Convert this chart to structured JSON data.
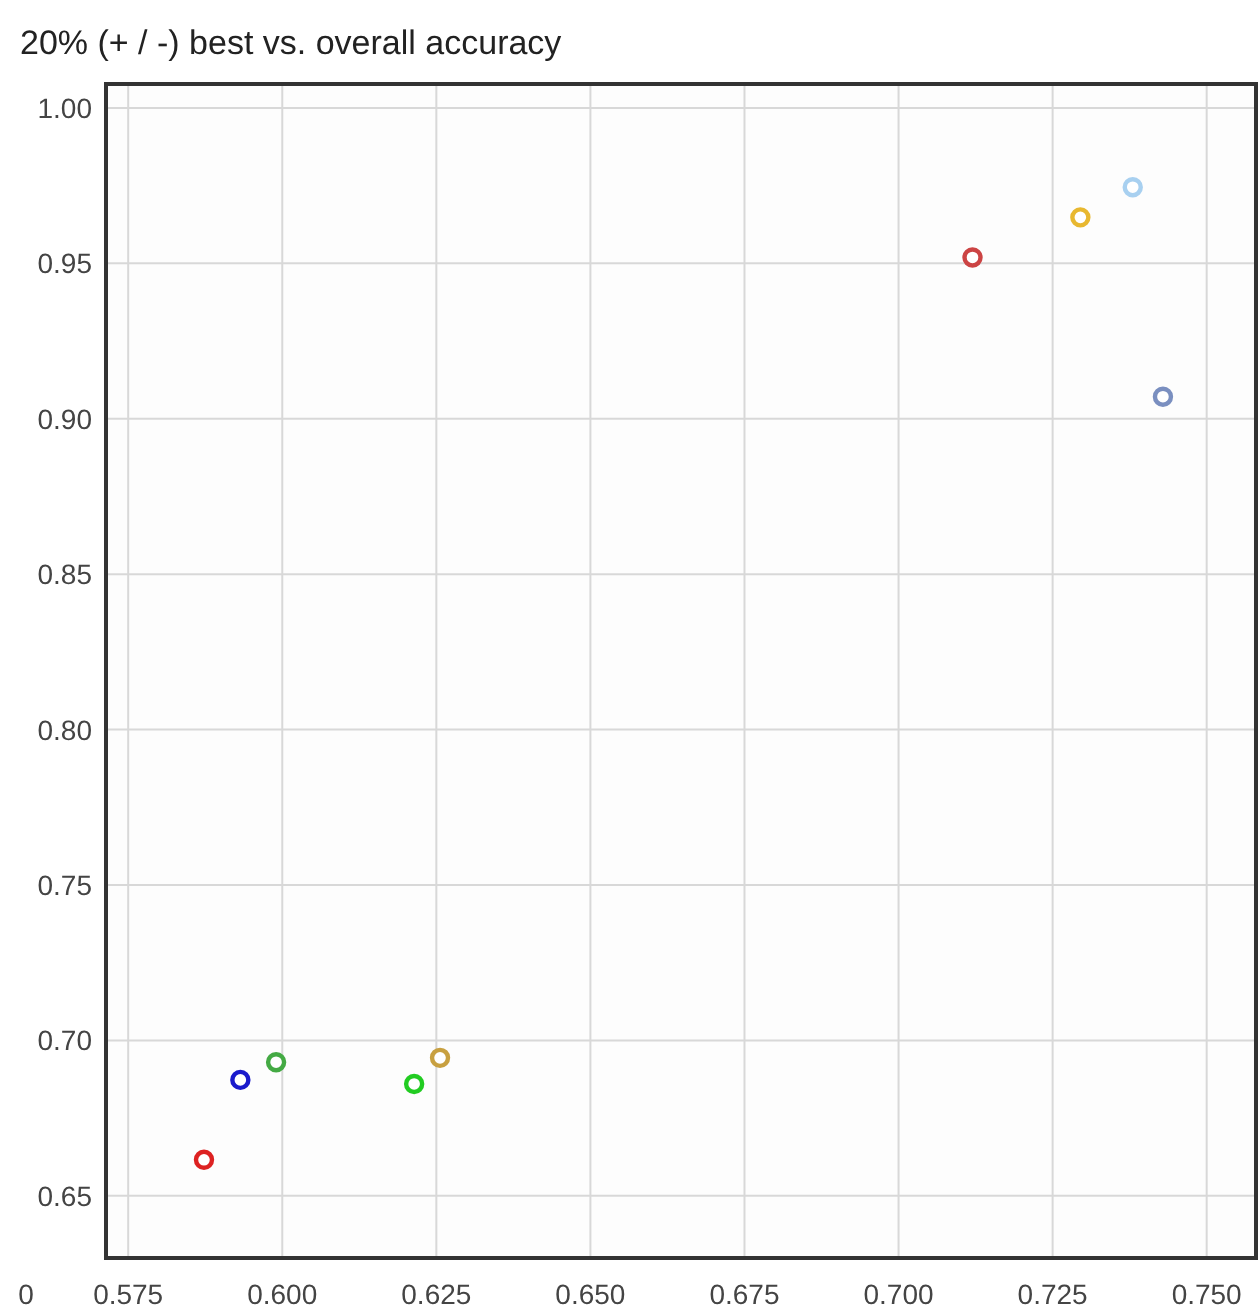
{
  "chart_data": {
    "type": "scatter",
    "title": "20% (+ / -) best vs. overall accuracy",
    "x": [
      0.5873,
      0.5932,
      0.599,
      0.6214,
      0.6256,
      0.712,
      0.7295,
      0.738,
      0.7429
    ],
    "values": [
      0.6616,
      0.6873,
      0.693,
      0.686,
      0.6944,
      0.9519,
      0.9648,
      0.9745,
      0.9071
    ],
    "colors": [
      "#dd2222",
      "#1a1acc",
      "#44aa44",
      "#22cc22",
      "#c8a040",
      "#cc4444",
      "#e8b830",
      "#a8d0f0",
      "#7a8fc0"
    ],
    "xlim": [
      0.5714,
      0.758
    ],
    "xticks": [
      {
        "value": 0.575,
        "label": "0.575"
      },
      {
        "value": 0.6,
        "label": "0.600"
      },
      {
        "value": 0.625,
        "label": "0.625"
      },
      {
        "value": 0.65,
        "label": "0.650"
      },
      {
        "value": 0.675,
        "label": "0.675"
      },
      {
        "value": 0.7,
        "label": "0.700"
      },
      {
        "value": 0.725,
        "label": "0.725"
      },
      {
        "value": 0.75,
        "label": "0.750"
      }
    ],
    "ylim": [
      0.63,
      1.0077
    ],
    "yticks": [
      {
        "value": 0.65,
        "label": "0.65"
      },
      {
        "value": 0.7,
        "label": "0.70"
      },
      {
        "value": 0.75,
        "label": "0.75"
      },
      {
        "value": 0.8,
        "label": "0.80"
      },
      {
        "value": 0.85,
        "label": "0.85"
      },
      {
        "value": 0.9,
        "label": "0.90"
      },
      {
        "value": 0.95,
        "label": "0.95"
      },
      {
        "value": 1.0,
        "label": "1.00"
      }
    ],
    "annotations": [
      "0"
    ],
    "grid": true,
    "marker": "circle"
  }
}
